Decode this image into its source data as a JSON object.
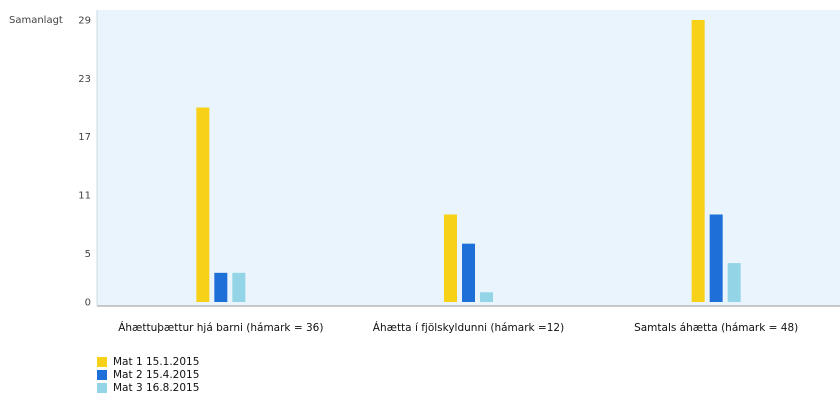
{
  "chart_data": {
    "type": "bar",
    "ylabel": "Samanlagt",
    "ylim": [
      0,
      29
    ],
    "yticks": [
      0,
      5,
      11,
      17,
      23,
      29
    ],
    "grid": false,
    "background": "#eaf4fc",
    "legend_position": "bottom-left",
    "categories": [
      "Áhættuþættur hjá barni (hámark = 36)",
      "Áhætta í fjölskyldunni (hámark =12)",
      "Samtals áhætta (hámark = 48)"
    ],
    "series": [
      {
        "name": "Mat 1 15.1.2015",
        "color": "#f7d117",
        "values": [
          20,
          9,
          29
        ]
      },
      {
        "name": "Mat 2 15.4.2015",
        "color": "#1f6fd8",
        "values": [
          3,
          6,
          9
        ]
      },
      {
        "name": "Mat 3 16.8.2015",
        "color": "#93d5e6",
        "values": [
          3,
          1,
          4
        ]
      }
    ]
  }
}
